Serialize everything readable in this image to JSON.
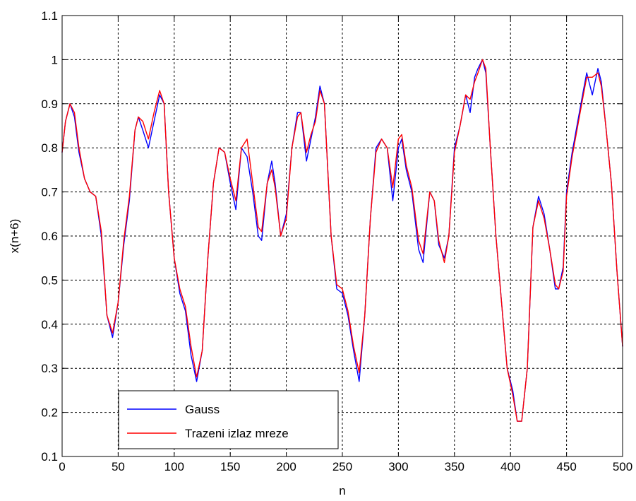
{
  "chart_data": {
    "type": "line",
    "title": "",
    "xlabel": "n",
    "ylabel": "x(n+6)",
    "xlim": [
      0,
      500
    ],
    "ylim": [
      0.1,
      1.1
    ],
    "xticks": [
      0,
      50,
      100,
      150,
      200,
      250,
      300,
      350,
      400,
      450,
      500
    ],
    "yticks": [
      0.1,
      0.2,
      0.3,
      0.4,
      0.5,
      0.6,
      0.7,
      0.8,
      0.9,
      1,
      1.1
    ],
    "xtick_labels": [
      "0",
      "50",
      "100",
      "150",
      "200",
      "250",
      "300",
      "350",
      "400",
      "450",
      "500"
    ],
    "ytick_labels": [
      "0.1",
      "0.2",
      "0.3",
      "0.4",
      "0.5",
      "0.6",
      "0.7",
      "0.8",
      "0.9",
      "1",
      "1.1"
    ],
    "grid": true,
    "legend_position": "bottom-left",
    "series": [
      {
        "name": "Gauss",
        "color": "#0000ff",
        "points": [
          [
            0,
            0.79
          ],
          [
            3,
            0.86
          ],
          [
            7,
            0.9
          ],
          [
            11,
            0.87
          ],
          [
            15,
            0.79
          ],
          [
            20,
            0.73
          ],
          [
            25,
            0.7
          ],
          [
            30,
            0.69
          ],
          [
            35,
            0.6
          ],
          [
            40,
            0.42
          ],
          [
            45,
            0.37
          ],
          [
            50,
            0.45
          ],
          [
            55,
            0.58
          ],
          [
            60,
            0.68
          ],
          [
            65,
            0.84
          ],
          [
            68,
            0.87
          ],
          [
            72,
            0.84
          ],
          [
            77,
            0.8
          ],
          [
            82,
            0.86
          ],
          [
            87,
            0.92
          ],
          [
            91,
            0.9
          ],
          [
            95,
            0.7
          ],
          [
            100,
            0.55
          ],
          [
            105,
            0.47
          ],
          [
            110,
            0.43
          ],
          [
            115,
            0.33
          ],
          [
            120,
            0.27
          ],
          [
            125,
            0.34
          ],
          [
            130,
            0.55
          ],
          [
            135,
            0.72
          ],
          [
            140,
            0.8
          ],
          [
            145,
            0.79
          ],
          [
            150,
            0.72
          ],
          [
            155,
            0.66
          ],
          [
            160,
            0.8
          ],
          [
            165,
            0.78
          ],
          [
            170,
            0.7
          ],
          [
            175,
            0.6
          ],
          [
            178,
            0.59
          ],
          [
            183,
            0.72
          ],
          [
            187,
            0.77
          ],
          [
            190,
            0.72
          ],
          [
            195,
            0.6
          ],
          [
            200,
            0.65
          ],
          [
            205,
            0.8
          ],
          [
            210,
            0.88
          ],
          [
            213,
            0.88
          ],
          [
            218,
            0.77
          ],
          [
            222,
            0.82
          ],
          [
            226,
            0.87
          ],
          [
            230,
            0.94
          ],
          [
            234,
            0.9
          ],
          [
            240,
            0.6
          ],
          [
            245,
            0.48
          ],
          [
            250,
            0.47
          ],
          [
            255,
            0.42
          ],
          [
            260,
            0.34
          ],
          [
            265,
            0.27
          ],
          [
            270,
            0.42
          ],
          [
            275,
            0.64
          ],
          [
            280,
            0.8
          ],
          [
            285,
            0.82
          ],
          [
            290,
            0.8
          ],
          [
            295,
            0.68
          ],
          [
            300,
            0.8
          ],
          [
            303,
            0.82
          ],
          [
            307,
            0.75
          ],
          [
            312,
            0.7
          ],
          [
            318,
            0.57
          ],
          [
            322,
            0.54
          ],
          [
            328,
            0.7
          ],
          [
            332,
            0.68
          ],
          [
            336,
            0.58
          ],
          [
            341,
            0.55
          ],
          [
            345,
            0.6
          ],
          [
            350,
            0.8
          ],
          [
            355,
            0.85
          ],
          [
            360,
            0.92
          ],
          [
            364,
            0.88
          ],
          [
            368,
            0.96
          ],
          [
            371,
            0.98
          ],
          [
            375,
            1.0
          ],
          [
            378,
            0.97
          ],
          [
            382,
            0.8
          ],
          [
            387,
            0.6
          ],
          [
            392,
            0.45
          ],
          [
            397,
            0.3
          ],
          [
            402,
            0.25
          ],
          [
            406,
            0.18
          ],
          [
            410,
            0.18
          ],
          [
            415,
            0.3
          ],
          [
            420,
            0.62
          ],
          [
            425,
            0.69
          ],
          [
            430,
            0.65
          ],
          [
            435,
            0.57
          ],
          [
            440,
            0.48
          ],
          [
            443,
            0.48
          ],
          [
            447,
            0.53
          ],
          [
            450,
            0.7
          ],
          [
            455,
            0.79
          ],
          [
            460,
            0.86
          ],
          [
            465,
            0.93
          ],
          [
            468,
            0.97
          ],
          [
            473,
            0.92
          ],
          [
            478,
            0.98
          ],
          [
            481,
            0.95
          ],
          [
            485,
            0.85
          ],
          [
            490,
            0.72
          ],
          [
            495,
            0.52
          ],
          [
            500,
            0.35
          ]
        ]
      },
      {
        "name": "Trazeni izlaz mreze",
        "color": "#ff0000",
        "points": [
          [
            0,
            0.79
          ],
          [
            3,
            0.86
          ],
          [
            7,
            0.9
          ],
          [
            11,
            0.88
          ],
          [
            15,
            0.8
          ],
          [
            20,
            0.73
          ],
          [
            25,
            0.7
          ],
          [
            30,
            0.69
          ],
          [
            35,
            0.61
          ],
          [
            40,
            0.42
          ],
          [
            45,
            0.38
          ],
          [
            50,
            0.45
          ],
          [
            55,
            0.59
          ],
          [
            60,
            0.69
          ],
          [
            65,
            0.84
          ],
          [
            68,
            0.87
          ],
          [
            72,
            0.86
          ],
          [
            77,
            0.82
          ],
          [
            82,
            0.88
          ],
          [
            87,
            0.93
          ],
          [
            91,
            0.9
          ],
          [
            95,
            0.7
          ],
          [
            100,
            0.55
          ],
          [
            105,
            0.48
          ],
          [
            110,
            0.44
          ],
          [
            115,
            0.35
          ],
          [
            120,
            0.28
          ],
          [
            125,
            0.34
          ],
          [
            130,
            0.55
          ],
          [
            135,
            0.72
          ],
          [
            140,
            0.8
          ],
          [
            145,
            0.79
          ],
          [
            150,
            0.73
          ],
          [
            155,
            0.68
          ],
          [
            160,
            0.8
          ],
          [
            165,
            0.82
          ],
          [
            170,
            0.72
          ],
          [
            175,
            0.62
          ],
          [
            178,
            0.61
          ],
          [
            183,
            0.72
          ],
          [
            187,
            0.75
          ],
          [
            190,
            0.71
          ],
          [
            195,
            0.6
          ],
          [
            200,
            0.64
          ],
          [
            205,
            0.8
          ],
          [
            210,
            0.87
          ],
          [
            213,
            0.88
          ],
          [
            218,
            0.79
          ],
          [
            222,
            0.83
          ],
          [
            226,
            0.86
          ],
          [
            230,
            0.93
          ],
          [
            234,
            0.9
          ],
          [
            240,
            0.6
          ],
          [
            245,
            0.49
          ],
          [
            250,
            0.48
          ],
          [
            255,
            0.43
          ],
          [
            260,
            0.35
          ],
          [
            265,
            0.29
          ],
          [
            270,
            0.42
          ],
          [
            275,
            0.64
          ],
          [
            280,
            0.79
          ],
          [
            285,
            0.82
          ],
          [
            290,
            0.8
          ],
          [
            295,
            0.71
          ],
          [
            300,
            0.82
          ],
          [
            303,
            0.83
          ],
          [
            307,
            0.76
          ],
          [
            312,
            0.71
          ],
          [
            318,
            0.59
          ],
          [
            322,
            0.56
          ],
          [
            328,
            0.7
          ],
          [
            332,
            0.68
          ],
          [
            336,
            0.59
          ],
          [
            341,
            0.54
          ],
          [
            345,
            0.6
          ],
          [
            350,
            0.79
          ],
          [
            355,
            0.85
          ],
          [
            360,
            0.92
          ],
          [
            364,
            0.91
          ],
          [
            368,
            0.95
          ],
          [
            371,
            0.97
          ],
          [
            375,
            1.0
          ],
          [
            378,
            0.98
          ],
          [
            382,
            0.8
          ],
          [
            387,
            0.6
          ],
          [
            392,
            0.45
          ],
          [
            397,
            0.3
          ],
          [
            402,
            0.24
          ],
          [
            406,
            0.18
          ],
          [
            410,
            0.18
          ],
          [
            415,
            0.3
          ],
          [
            420,
            0.62
          ],
          [
            425,
            0.68
          ],
          [
            430,
            0.64
          ],
          [
            435,
            0.57
          ],
          [
            440,
            0.49
          ],
          [
            443,
            0.48
          ],
          [
            447,
            0.52
          ],
          [
            450,
            0.69
          ],
          [
            455,
            0.78
          ],
          [
            460,
            0.85
          ],
          [
            465,
            0.92
          ],
          [
            468,
            0.96
          ],
          [
            473,
            0.96
          ],
          [
            478,
            0.97
          ],
          [
            481,
            0.94
          ],
          [
            485,
            0.85
          ],
          [
            490,
            0.72
          ],
          [
            495,
            0.52
          ],
          [
            500,
            0.35
          ]
        ]
      }
    ]
  }
}
